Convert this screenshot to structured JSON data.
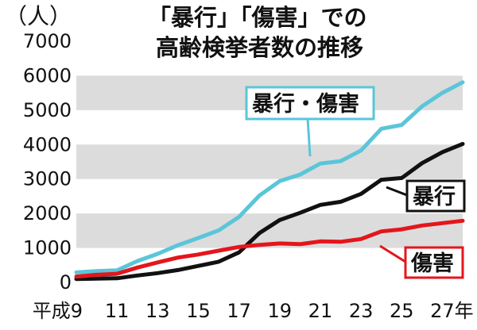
{
  "title": [
    "「暴行」「傷害」での",
    "高齢検挙者数の推移"
  ],
  "unit_label": "（人）",
  "colors": {
    "assault_total": "#5bc5d9",
    "assault": "#111111",
    "injury": "#e3161c",
    "band": "#dcdcdc",
    "background": "#ffffff"
  },
  "chart_data": {
    "type": "line",
    "title": "「暴行」「傷害」での高齢検挙者数の推移",
    "ylabel": "（人）",
    "ylim": [
      0,
      7000
    ],
    "yticks": [
      0,
      1000,
      2000,
      3000,
      4000,
      5000,
      6000,
      7000
    ],
    "ytick_labels": [
      "0",
      "1000",
      "2000",
      "3000",
      "4000",
      "5000",
      "6000",
      "7000"
    ],
    "x": [
      9,
      10,
      11,
      12,
      13,
      14,
      15,
      16,
      17,
      18,
      19,
      20,
      21,
      22,
      23,
      24,
      25,
      26,
      27,
      28
    ],
    "xtick_labels": [
      {
        "x": 9,
        "label": "平成9"
      },
      {
        "x": 11,
        "label": "11"
      },
      {
        "x": 13,
        "label": "13"
      },
      {
        "x": 15,
        "label": "15"
      },
      {
        "x": 17,
        "label": "17"
      },
      {
        "x": 19,
        "label": "19"
      },
      {
        "x": 21,
        "label": "21"
      },
      {
        "x": 23,
        "label": "23"
      },
      {
        "x": 25,
        "label": "25"
      },
      {
        "x": 27,
        "label": "27年"
      }
    ],
    "grid": "alternating horizontal bands",
    "series": [
      {
        "name": "暴行・傷害",
        "color": "#5bc5d9",
        "values": [
          290,
          330,
          350,
          620,
          830,
          1080,
          1290,
          1510,
          1900,
          2520,
          2940,
          3130,
          3450,
          3520,
          3830,
          4460,
          4570,
          5110,
          5500,
          5810
        ]
      },
      {
        "name": "暴行",
        "color": "#111111",
        "values": [
          100,
          110,
          120,
          200,
          270,
          360,
          480,
          600,
          870,
          1430,
          1810,
          2020,
          2250,
          2340,
          2570,
          2980,
          3030,
          3460,
          3780,
          4020
        ]
      },
      {
        "name": "傷害",
        "color": "#e3161c",
        "values": [
          170,
          220,
          250,
          430,
          580,
          720,
          810,
          920,
          1030,
          1090,
          1130,
          1110,
          1190,
          1180,
          1260,
          1480,
          1540,
          1650,
          1720,
          1790
        ]
      }
    ]
  }
}
